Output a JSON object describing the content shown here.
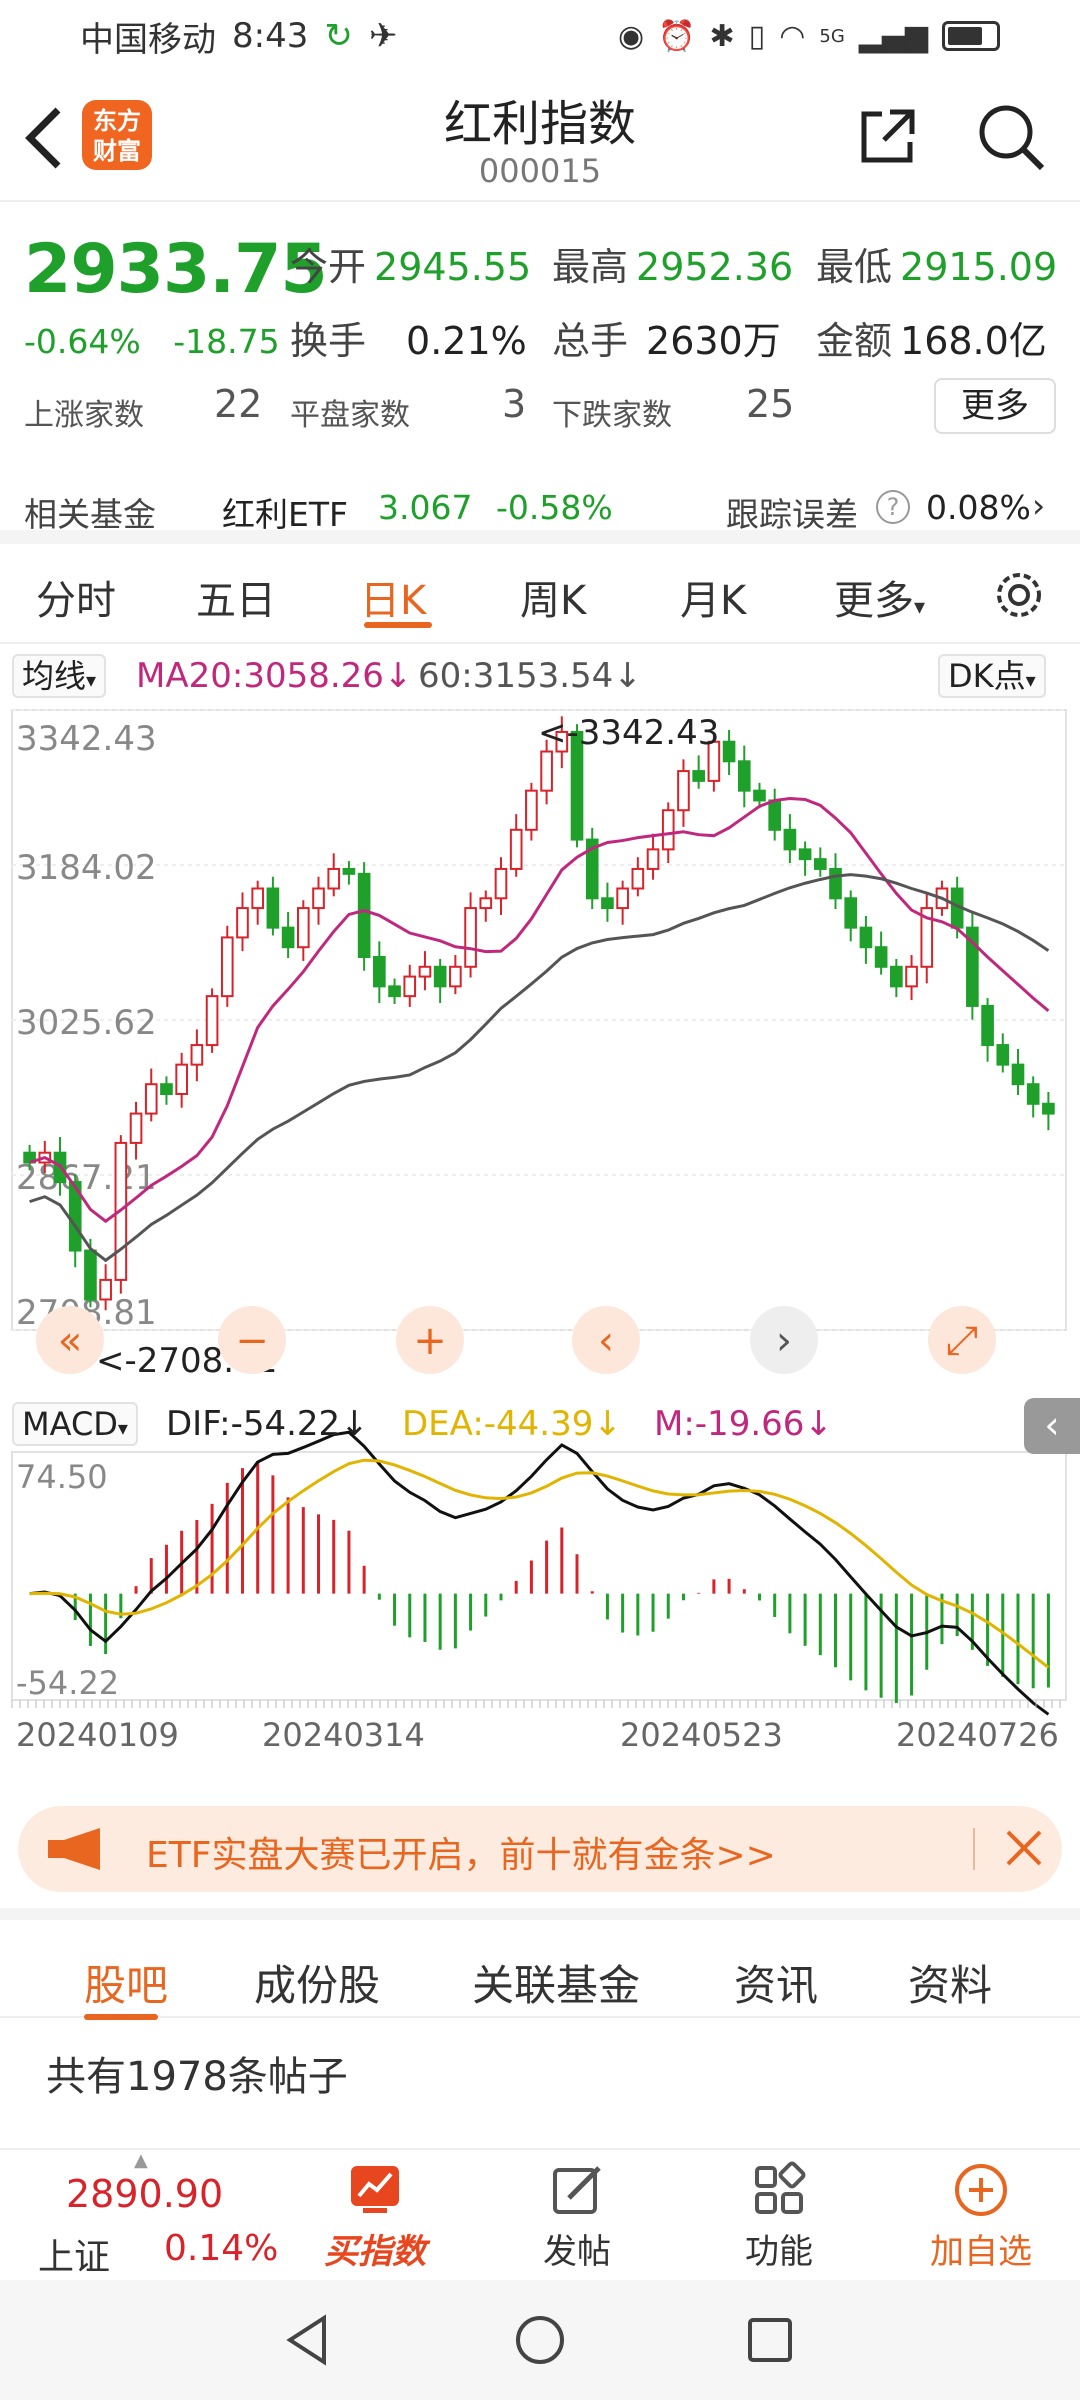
{
  "status_bar": {
    "carrier": "中国移动",
    "time": "8:43",
    "signal": "5G"
  },
  "header": {
    "logo_text": "东方财富",
    "title": "红利指数",
    "code": "000015"
  },
  "quote": {
    "price": "2933.75",
    "change_pct": "-0.64%",
    "change": "-18.75",
    "open_label": "今开",
    "open": "2945.55",
    "high_label": "最高",
    "high": "2952.36",
    "low_label": "最低",
    "low": "2915.09",
    "turnover_label": "换手",
    "turnover": "0.21%",
    "volume_label": "总手",
    "volume": "2630万",
    "amount_label": "金额",
    "amount": "168.0亿",
    "up_label": "上涨家数",
    "up": "22",
    "flat_label": "平盘家数",
    "flat": "3",
    "down_label": "下跌家数",
    "down": "25",
    "more": "更多",
    "fund_label": "相关基金",
    "fund_name": "红利ETF",
    "fund_price": "3.067",
    "fund_change": "-0.58%",
    "tracking_label": "跟踪误差",
    "tracking_value": "0.08%"
  },
  "chart_tabs": [
    {
      "label": "分时"
    },
    {
      "label": "五日"
    },
    {
      "label": "日K"
    },
    {
      "label": "周K"
    },
    {
      "label": "月K"
    },
    {
      "label": "更多"
    }
  ],
  "ma_bar": {
    "selector": "均线",
    "ma20": "MA20:3058.26",
    "ma60": "60:3153.54",
    "dk": "DK点"
  },
  "macd_bar": {
    "selector": "MACD",
    "dif": "DIF:-54.22",
    "dea": "DEA:-44.39",
    "m": "M:-19.66"
  },
  "colors": {
    "up": "#d8232a",
    "down": "#1ea02a",
    "ma20": "#c0287e",
    "ma60": "#555555",
    "dea": "#e0b400",
    "accent": "#e8661f"
  },
  "chart_data": [
    {
      "type": "candlestick",
      "title": "",
      "y_tick_labels": [
        "3342.43",
        "3184.02",
        "3025.62",
        "2867.21",
        "2708.81"
      ],
      "ylim": [
        2708.81,
        3342.43
      ],
      "high_annotation": "<-3342.43",
      "low_annotation": "<-2708.81",
      "x_tick_labels": [
        "20240109",
        "20240314",
        "20240523",
        "20240726"
      ],
      "series": [
        {
          "name": "MA20",
          "value_last": 3058.26
        },
        {
          "name": "60",
          "value_last": 3153.54
        }
      ],
      "close_path": [
        2880,
        2890,
        2860,
        2790,
        2740,
        2760,
        2900,
        2930,
        2960,
        2950,
        2980,
        3000,
        3050,
        3110,
        3140,
        3160,
        3120,
        3100,
        3140,
        3160,
        3180,
        3175,
        3090,
        3060,
        3050,
        3070,
        3080,
        3060,
        3080,
        3140,
        3150,
        3180,
        3220,
        3260,
        3300,
        3320,
        3210,
        3150,
        3140,
        3160,
        3180,
        3200,
        3240,
        3280,
        3270,
        3310,
        3290,
        3260,
        3250,
        3220,
        3200,
        3190,
        3180,
        3150,
        3120,
        3100,
        3080,
        3060,
        3080,
        3140,
        3160,
        3120,
        3040,
        3000,
        2980,
        2960,
        2940,
        2930
      ]
    },
    {
      "type": "macd",
      "y_tick_labels": [
        "74.50",
        "-54.22"
      ],
      "ylim": [
        -54.22,
        74.5
      ]
    }
  ],
  "banner": {
    "text": "ETF实盘大赛已开启，前十就有金条>>"
  },
  "subtabs": [
    {
      "label": "股吧"
    },
    {
      "label": "成份股"
    },
    {
      "label": "关联基金"
    },
    {
      "label": "资讯"
    },
    {
      "label": "资料"
    }
  ],
  "posts": {
    "count_text": "共有1978条帖子"
  },
  "bottom_bar": {
    "index_value": "2890.90",
    "index_name": "上证",
    "index_pct": "0.14%",
    "buy_label": "买指数",
    "post_label": "发帖",
    "func_label": "功能",
    "add_label": "加自选"
  }
}
